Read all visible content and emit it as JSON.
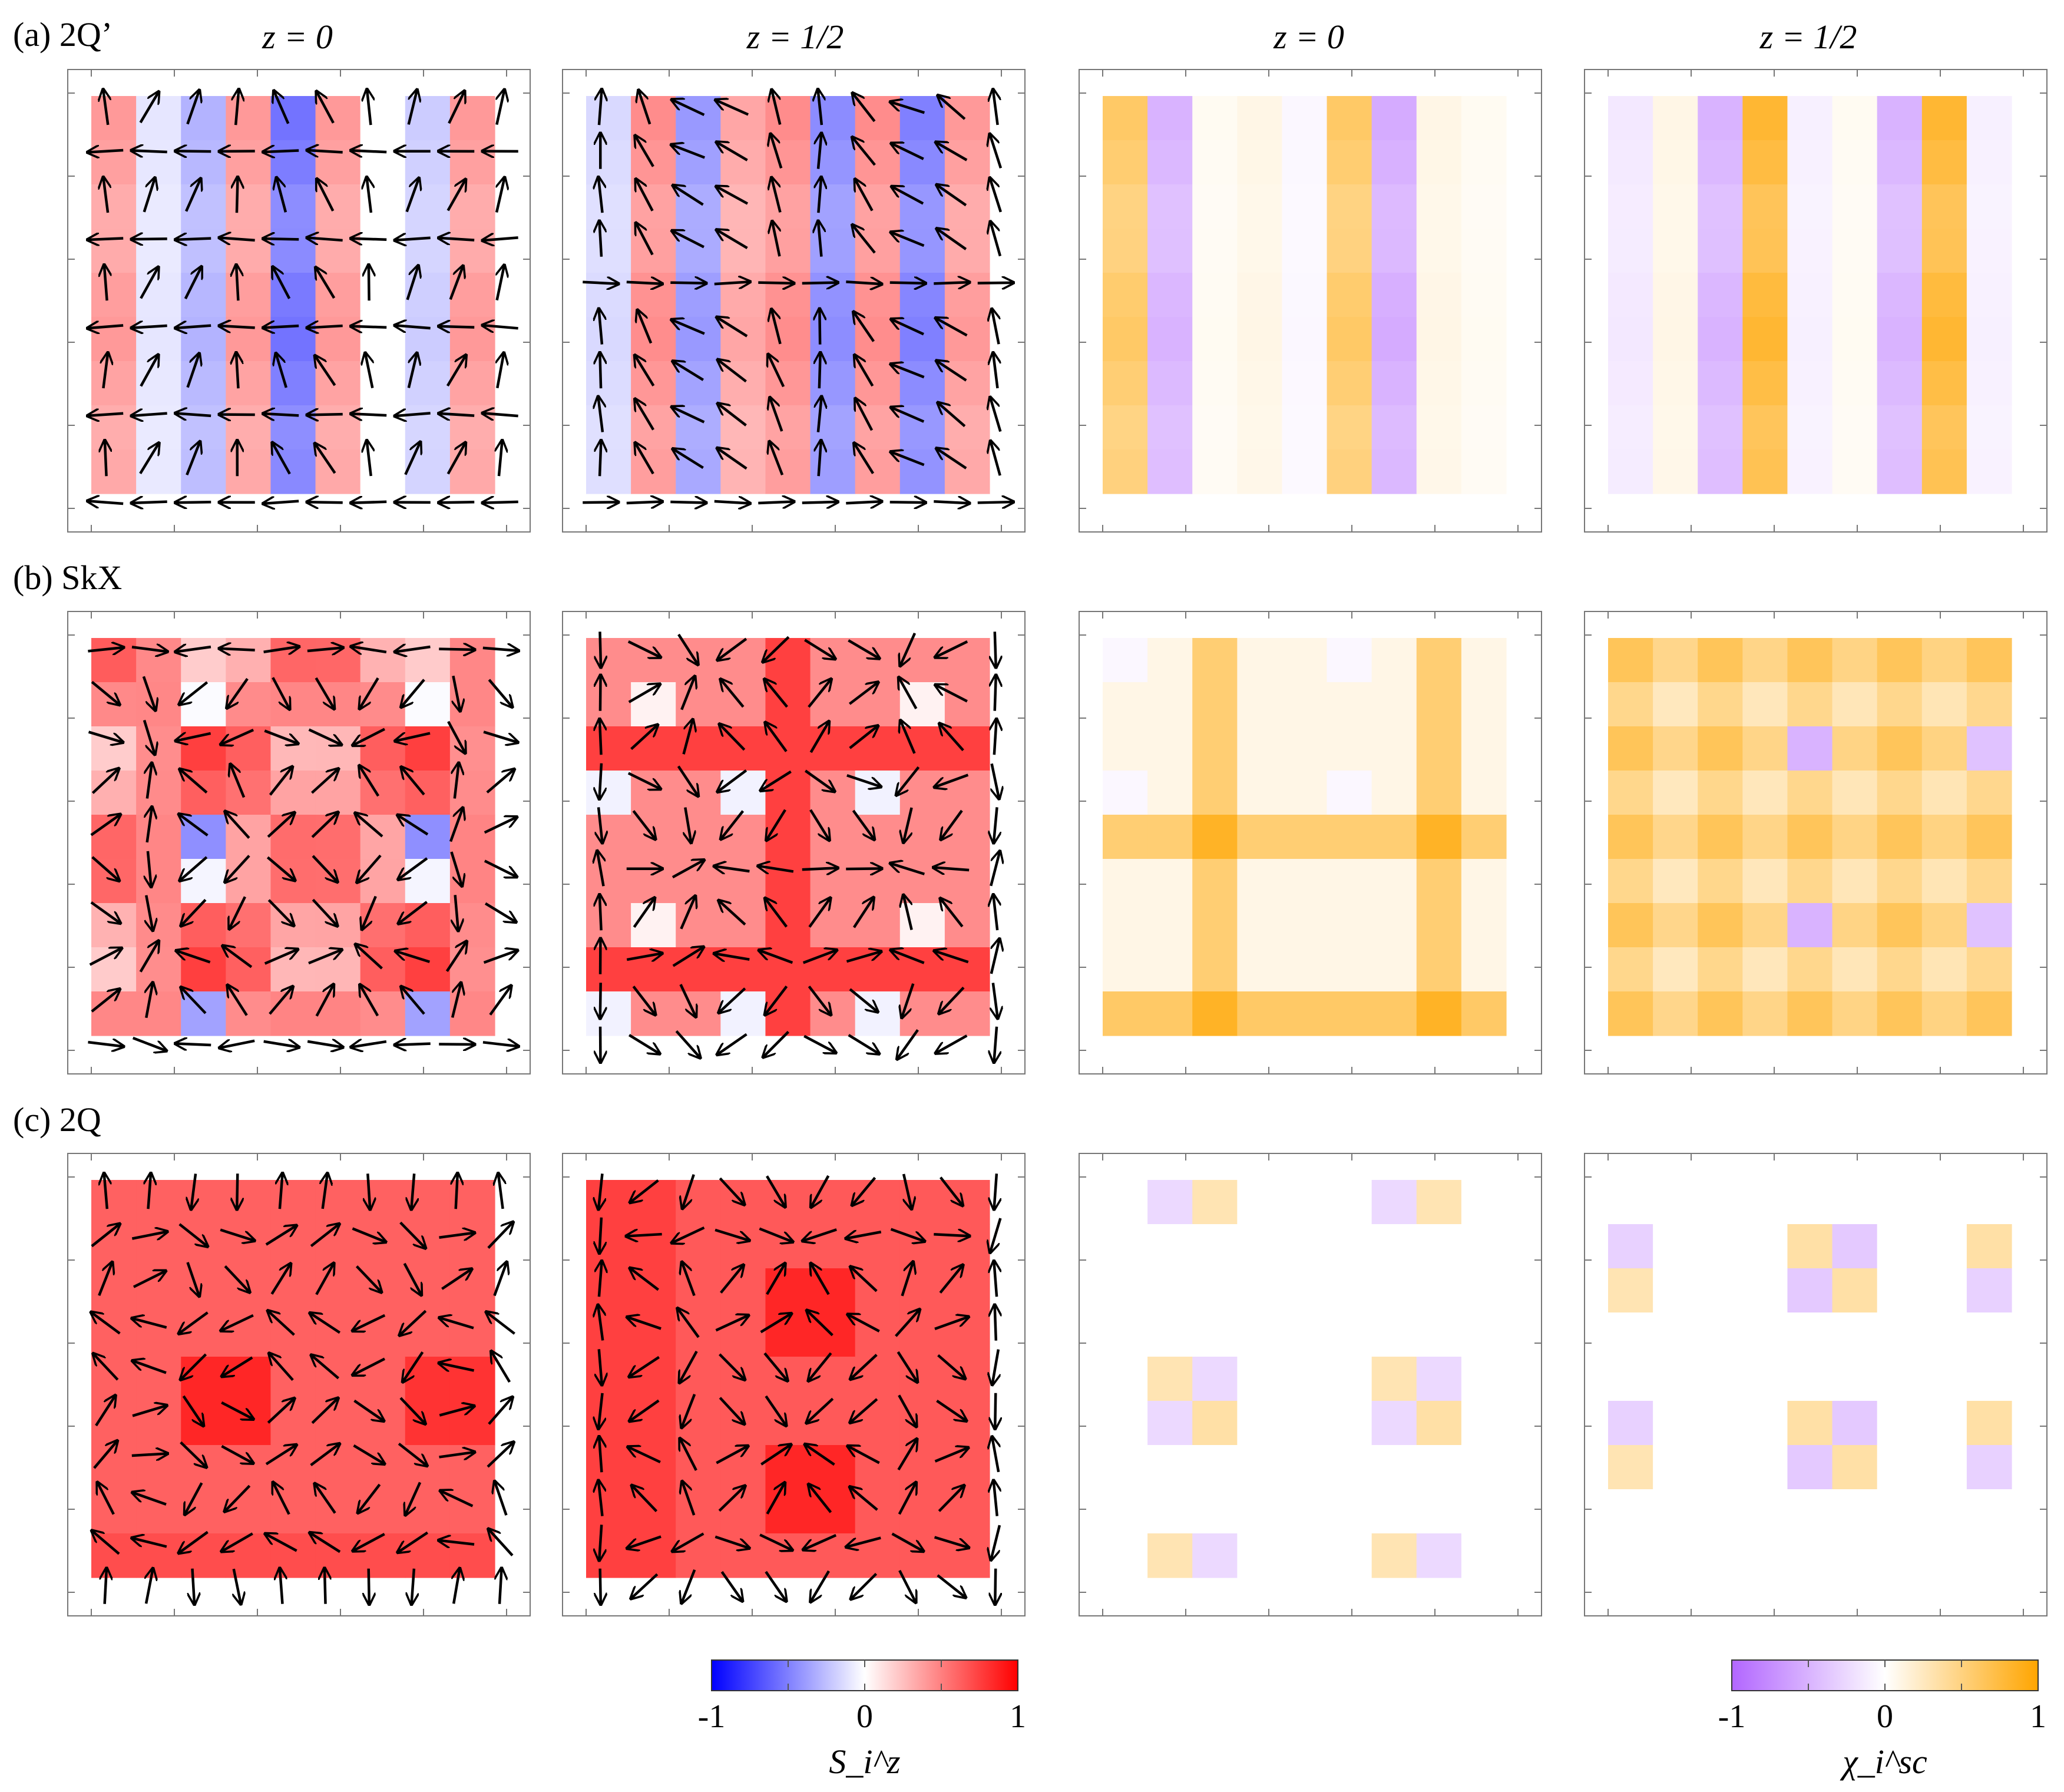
{
  "figure": {
    "rows": [
      {
        "label": "(a) 2Q’",
        "phase": "2Q'"
      },
      {
        "label": "(b) SkX",
        "phase": "SkX"
      },
      {
        "label": "(c) 2Q",
        "phase": "2Q"
      }
    ],
    "column_titles": [
      "z = 0",
      "z = 1/2",
      "z = 0",
      "z = 1/2"
    ]
  },
  "colorbars": {
    "spin": {
      "label": "S_i^z",
      "ticks": [
        "-1",
        "0",
        "1"
      ],
      "range": [
        -1,
        1
      ],
      "colors": {
        "neg": "#0000ff",
        "mid": "#ffffff",
        "pos": "#ff0000"
      }
    },
    "chirality": {
      "label": "χ_i^sc",
      "ticks": [
        "-1",
        "0",
        "1"
      ],
      "range": [
        -1,
        1
      ],
      "colors": {
        "neg": "#b266ff",
        "mid": "#ffffff",
        "pos": "#ffa500"
      }
    }
  },
  "chart_data": [
    {
      "type": "heatmap",
      "row": "2Q'",
      "quantity": "S_i^z",
      "layer": "z = 0",
      "grid": [
        9,
        9
      ],
      "column_values": [
        0.4,
        -0.1,
        -0.3,
        0.4,
        -0.55,
        0.4,
        0.0,
        -0.2,
        0.4
      ],
      "description": "stripe pattern along x, arrows show in-plane spin"
    },
    {
      "type": "heatmap",
      "row": "2Q'",
      "quantity": "S_i^z",
      "layer": "z = 1/2",
      "grid": [
        9,
        9
      ],
      "column_values": [
        -0.15,
        0.45,
        -0.4,
        0.35,
        0.45,
        -0.45,
        0.45,
        -0.5,
        0.4
      ]
    },
    {
      "type": "heatmap",
      "row": "2Q'",
      "quantity": "χ_i^sc",
      "layer": "z = 0",
      "grid": [
        9,
        9
      ],
      "column_values": [
        0.6,
        -0.5,
        0.05,
        0.1,
        -0.05,
        0.6,
        -0.55,
        0.1,
        0.05
      ]
    },
    {
      "type": "heatmap",
      "row": "2Q'",
      "quantity": "χ_i^sc",
      "layer": "z = 1/2",
      "grid": [
        9,
        9
      ],
      "column_values": [
        -0.15,
        0.1,
        -0.5,
        0.8,
        -0.1,
        0.05,
        -0.5,
        0.8,
        -0.1
      ]
    },
    {
      "type": "heatmap",
      "row": "SkX",
      "quantity": "S_i^z",
      "layer": "z = 0",
      "grid": [
        9,
        9
      ],
      "description": "skyrmion crystal, mostly positive with negative cores"
    },
    {
      "type": "heatmap",
      "row": "SkX",
      "quantity": "S_i^z",
      "layer": "z = 1/2",
      "grid": [
        9,
        9
      ]
    },
    {
      "type": "heatmap",
      "row": "SkX",
      "quantity": "χ_i^sc",
      "layer": "z = 0",
      "grid": [
        9,
        9
      ]
    },
    {
      "type": "heatmap",
      "row": "SkX",
      "quantity": "χ_i^sc",
      "layer": "z = 1/2",
      "grid": [
        9,
        9
      ]
    },
    {
      "type": "heatmap",
      "row": "2Q",
      "quantity": "S_i^z",
      "layer": "z = 0",
      "grid": [
        9,
        9
      ]
    },
    {
      "type": "heatmap",
      "row": "2Q",
      "quantity": "S_i^z",
      "layer": "z = 1/2",
      "grid": [
        9,
        9
      ]
    },
    {
      "type": "heatmap",
      "row": "2Q",
      "quantity": "χ_i^sc",
      "layer": "z = 0",
      "grid": [
        9,
        9
      ]
    },
    {
      "type": "heatmap",
      "row": "2Q",
      "quantity": "χ_i^sc",
      "layer": "z = 1/2",
      "grid": [
        9,
        9
      ]
    }
  ]
}
